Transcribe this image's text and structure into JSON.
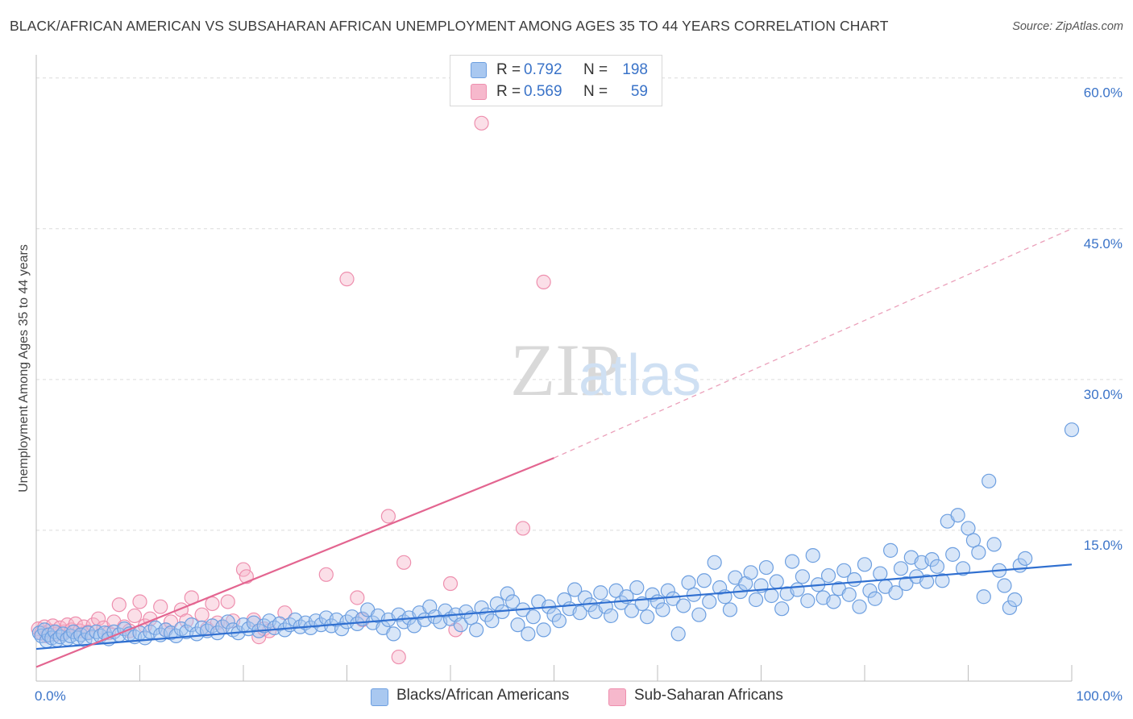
{
  "title": "BLACK/AFRICAN AMERICAN VS SUBSAHARAN AFRICAN UNEMPLOYMENT AMONG AGES 35 TO 44 YEARS CORRELATION CHART",
  "source": "Source: ZipAtlas.com",
  "watermark": {
    "zip": "ZIP",
    "atlas": "atlas"
  },
  "legend": {
    "rows": [
      {
        "r_label": "R =",
        "r_value": "0.792",
        "n_label": "N =",
        "n_value": "198",
        "color": "#a9c8f0"
      },
      {
        "r_label": "R =",
        "r_value": "0.569",
        "n_label": "N =",
        "n_value": "59",
        "color": "#f6b8cc"
      }
    ]
  },
  "bottom_legend": [
    {
      "label": "Blacks/African Americans",
      "color": "#a9c8f0"
    },
    {
      "label": "Sub-Saharan Africans",
      "color": "#f6b8cc"
    }
  ],
  "chart_data": {
    "type": "scatter",
    "title": "BLACK/AFRICAN AMERICAN VS SUBSAHARAN AFRICAN UNEMPLOYMENT AMONG AGES 35 TO 44 YEARS CORRELATION CHART",
    "xlabel": "",
    "ylabel": "Unemployment Among Ages 35 to 44 years",
    "xlim": [
      0,
      100
    ],
    "ylim": [
      0,
      60
    ],
    "x_tick_labels": [
      "0.0%",
      "100.0%"
    ],
    "y_tick_labels": [
      "15.0%",
      "30.0%",
      "45.0%",
      "60.0%"
    ],
    "y_ticks": [
      15,
      30,
      45,
      60
    ],
    "grid": true,
    "series": [
      {
        "name": "Blacks/African Americans",
        "color": "#6d9fe0",
        "fill": "#a9c8f0",
        "r": 0.792,
        "n": 198,
        "trend": {
          "x0": 0,
          "y0": 3.2,
          "x1": 100,
          "y1": 11.6
        },
        "points": [
          [
            0.3,
            4.8
          ],
          [
            0.5,
            4.5
          ],
          [
            0.8,
            5.1
          ],
          [
            1.0,
            4.0
          ],
          [
            1.2,
            4.6
          ],
          [
            1.5,
            4.3
          ],
          [
            1.8,
            4.9
          ],
          [
            2.0,
            4.1
          ],
          [
            2.3,
            4.4
          ],
          [
            2.6,
            4.7
          ],
          [
            3.0,
            4.2
          ],
          [
            3.3,
            4.5
          ],
          [
            3.6,
            4.9
          ],
          [
            4.0,
            4.3
          ],
          [
            4.3,
            4.6
          ],
          [
            4.7,
            4.1
          ],
          [
            5.0,
            4.8
          ],
          [
            5.4,
            4.4
          ],
          [
            5.8,
            4.9
          ],
          [
            6.2,
            4.5
          ],
          [
            6.6,
            4.8
          ],
          [
            7.0,
            4.2
          ],
          [
            7.5,
            4.9
          ],
          [
            8.0,
            4.6
          ],
          [
            8.5,
            5.2
          ],
          [
            9.0,
            4.7
          ],
          [
            9.5,
            4.4
          ],
          [
            10.0,
            4.8
          ],
          [
            10.5,
            4.3
          ],
          [
            11.0,
            4.9
          ],
          [
            11.5,
            5.3
          ],
          [
            12.0,
            4.6
          ],
          [
            12.5,
            5.1
          ],
          [
            13.0,
            4.8
          ],
          [
            13.5,
            4.5
          ],
          [
            14.0,
            5.2
          ],
          [
            14.5,
            4.9
          ],
          [
            15.0,
            5.6
          ],
          [
            15.5,
            4.7
          ],
          [
            16.0,
            5.3
          ],
          [
            16.5,
            5.0
          ],
          [
            17.0,
            5.5
          ],
          [
            17.5,
            4.8
          ],
          [
            18.0,
            5.4
          ],
          [
            18.5,
            5.9
          ],
          [
            19.0,
            5.1
          ],
          [
            19.5,
            4.8
          ],
          [
            20.0,
            5.6
          ],
          [
            20.5,
            5.2
          ],
          [
            21.0,
            5.8
          ],
          [
            21.5,
            5.0
          ],
          [
            22.0,
            5.5
          ],
          [
            22.5,
            6.0
          ],
          [
            23.0,
            5.3
          ],
          [
            23.5,
            5.7
          ],
          [
            24.0,
            5.1
          ],
          [
            24.5,
            5.6
          ],
          [
            25.0,
            6.1
          ],
          [
            25.5,
            5.4
          ],
          [
            26.0,
            5.8
          ],
          [
            26.5,
            5.3
          ],
          [
            27.0,
            6.0
          ],
          [
            27.5,
            5.6
          ],
          [
            28.0,
            6.3
          ],
          [
            28.5,
            5.5
          ],
          [
            29.0,
            6.1
          ],
          [
            29.5,
            5.2
          ],
          [
            30.0,
            5.9
          ],
          [
            30.5,
            6.4
          ],
          [
            31.0,
            5.7
          ],
          [
            31.5,
            6.2
          ],
          [
            32.0,
            7.1
          ],
          [
            32.5,
            5.8
          ],
          [
            33.0,
            6.5
          ],
          [
            33.5,
            5.3
          ],
          [
            34.0,
            6.1
          ],
          [
            34.5,
            4.7
          ],
          [
            35.0,
            6.6
          ],
          [
            35.5,
            5.9
          ],
          [
            36.0,
            6.3
          ],
          [
            36.5,
            5.5
          ],
          [
            37.0,
            6.8
          ],
          [
            37.5,
            6.1
          ],
          [
            38.0,
            7.4
          ],
          [
            38.5,
            6.4
          ],
          [
            39.0,
            5.9
          ],
          [
            39.5,
            7.0
          ],
          [
            40.0,
            6.2
          ],
          [
            40.5,
            6.6
          ],
          [
            41.0,
            5.6
          ],
          [
            41.5,
            6.9
          ],
          [
            42.0,
            6.3
          ],
          [
            42.5,
            5.1
          ],
          [
            43.0,
            7.3
          ],
          [
            43.5,
            6.6
          ],
          [
            44.0,
            6.0
          ],
          [
            44.5,
            7.7
          ],
          [
            45.0,
            6.9
          ],
          [
            45.5,
            8.7
          ],
          [
            46.0,
            7.9
          ],
          [
            46.5,
            5.6
          ],
          [
            47.0,
            7.1
          ],
          [
            47.5,
            4.7
          ],
          [
            48.0,
            6.4
          ],
          [
            48.5,
            7.9
          ],
          [
            49.0,
            5.1
          ],
          [
            49.5,
            7.4
          ],
          [
            50.0,
            6.6
          ],
          [
            50.5,
            6.0
          ],
          [
            51.0,
            8.1
          ],
          [
            51.5,
            7.2
          ],
          [
            52.0,
            9.1
          ],
          [
            52.5,
            6.8
          ],
          [
            53.0,
            8.3
          ],
          [
            53.5,
            7.6
          ],
          [
            54.0,
            6.9
          ],
          [
            54.5,
            8.8
          ],
          [
            55.0,
            7.4
          ],
          [
            55.5,
            6.5
          ],
          [
            56.0,
            9.0
          ],
          [
            56.5,
            7.8
          ],
          [
            57.0,
            8.4
          ],
          [
            57.5,
            7.0
          ],
          [
            58.0,
            9.3
          ],
          [
            58.5,
            7.7
          ],
          [
            59.0,
            6.4
          ],
          [
            59.5,
            8.6
          ],
          [
            60.0,
            7.9
          ],
          [
            60.5,
            7.1
          ],
          [
            61.0,
            9.0
          ],
          [
            61.5,
            8.2
          ],
          [
            62.0,
            4.7
          ],
          [
            62.5,
            7.5
          ],
          [
            63.0,
            9.8
          ],
          [
            63.5,
            8.6
          ],
          [
            64.0,
            6.6
          ],
          [
            64.5,
            10.0
          ],
          [
            65.0,
            7.9
          ],
          [
            65.5,
            11.8
          ],
          [
            66.0,
            9.3
          ],
          [
            66.5,
            8.4
          ],
          [
            67.0,
            7.1
          ],
          [
            67.5,
            10.3
          ],
          [
            68.0,
            8.9
          ],
          [
            68.5,
            9.7
          ],
          [
            69.0,
            10.8
          ],
          [
            69.5,
            8.1
          ],
          [
            70.0,
            9.5
          ],
          [
            70.5,
            11.3
          ],
          [
            71.0,
            8.5
          ],
          [
            71.5,
            9.9
          ],
          [
            72.0,
            7.2
          ],
          [
            72.5,
            8.7
          ],
          [
            73.0,
            11.9
          ],
          [
            73.5,
            9.1
          ],
          [
            74.0,
            10.4
          ],
          [
            74.5,
            8.0
          ],
          [
            75.0,
            12.5
          ],
          [
            75.5,
            9.6
          ],
          [
            76.0,
            8.3
          ],
          [
            76.5,
            10.5
          ],
          [
            77.0,
            7.9
          ],
          [
            77.5,
            9.2
          ],
          [
            78.0,
            11.0
          ],
          [
            78.5,
            8.6
          ],
          [
            79.0,
            10.1
          ],
          [
            79.5,
            7.4
          ],
          [
            80.0,
            11.6
          ],
          [
            80.5,
            9.0
          ],
          [
            81.0,
            8.2
          ],
          [
            81.5,
            10.7
          ],
          [
            82.0,
            9.4
          ],
          [
            82.5,
            13.0
          ],
          [
            83.0,
            8.8
          ],
          [
            83.5,
            11.2
          ],
          [
            84.0,
            9.7
          ],
          [
            84.5,
            12.3
          ],
          [
            85.0,
            10.4
          ],
          [
            85.5,
            11.8
          ],
          [
            86.0,
            9.9
          ],
          [
            86.5,
            12.1
          ],
          [
            87.0,
            11.4
          ],
          [
            87.5,
            10.0
          ],
          [
            88.0,
            15.9
          ],
          [
            88.5,
            12.6
          ],
          [
            89.0,
            16.5
          ],
          [
            89.5,
            11.2
          ],
          [
            90.0,
            15.2
          ],
          [
            90.5,
            14.0
          ],
          [
            91.0,
            12.8
          ],
          [
            91.5,
            8.4
          ],
          [
            92.0,
            19.9
          ],
          [
            92.5,
            13.6
          ],
          [
            93.0,
            11.0
          ],
          [
            93.5,
            9.5
          ],
          [
            94.0,
            7.3
          ],
          [
            94.5,
            8.1
          ],
          [
            95.0,
            11.5
          ],
          [
            95.5,
            12.2
          ],
          [
            100.0,
            25.0
          ]
        ]
      },
      {
        "name": "Sub-Saharan Africans",
        "color": "#ee8fae",
        "fill": "#f6b8cc",
        "r": 0.569,
        "n": 59,
        "trend": {
          "x0": 0,
          "y0": 1.4,
          "x1": 50,
          "y1": 22.2,
          "dash_x1": 100,
          "dash_y1": 45.0
        },
        "points": [
          [
            0.2,
            5.2
          ],
          [
            0.5,
            4.8
          ],
          [
            0.8,
            5.4
          ],
          [
            1.0,
            4.5
          ],
          [
            1.3,
            5.0
          ],
          [
            1.6,
            5.5
          ],
          [
            2.0,
            4.7
          ],
          [
            2.3,
            5.3
          ],
          [
            2.7,
            4.9
          ],
          [
            3.0,
            5.6
          ],
          [
            3.4,
            5.1
          ],
          [
            3.8,
            5.7
          ],
          [
            4.2,
            5.0
          ],
          [
            4.6,
            5.4
          ],
          [
            5.0,
            4.9
          ],
          [
            5.5,
            5.6
          ],
          [
            6.0,
            6.2
          ],
          [
            6.5,
            5.3
          ],
          [
            7.0,
            4.8
          ],
          [
            7.5,
            5.9
          ],
          [
            8.0,
            7.6
          ],
          [
            8.5,
            5.4
          ],
          [
            9.0,
            5.0
          ],
          [
            9.5,
            6.5
          ],
          [
            10.0,
            7.9
          ],
          [
            10.5,
            5.5
          ],
          [
            11.0,
            6.2
          ],
          [
            12.0,
            7.4
          ],
          [
            12.5,
            5.1
          ],
          [
            13.0,
            5.9
          ],
          [
            14.0,
            7.1
          ],
          [
            14.5,
            6.0
          ],
          [
            15.0,
            8.3
          ],
          [
            16.0,
            6.6
          ],
          [
            16.5,
            5.2
          ],
          [
            17.0,
            7.7
          ],
          [
            17.5,
            5.8
          ],
          [
            18.0,
            5.4
          ],
          [
            18.5,
            7.9
          ],
          [
            19.0,
            6.0
          ],
          [
            20.0,
            11.1
          ],
          [
            20.3,
            10.4
          ],
          [
            21.0,
            6.1
          ],
          [
            21.5,
            4.4
          ],
          [
            22.0,
            5.2
          ],
          [
            22.5,
            5.0
          ],
          [
            24.0,
            6.8
          ],
          [
            28.0,
            10.6
          ],
          [
            30.0,
            40.0
          ],
          [
            31.0,
            8.3
          ],
          [
            31.5,
            6.1
          ],
          [
            34.0,
            16.4
          ],
          [
            35.0,
            2.4
          ],
          [
            35.5,
            11.8
          ],
          [
            40.0,
            9.7
          ],
          [
            40.5,
            5.1
          ],
          [
            43.0,
            55.5
          ],
          [
            47.0,
            15.2
          ],
          [
            49.0,
            39.7
          ]
        ]
      }
    ]
  }
}
